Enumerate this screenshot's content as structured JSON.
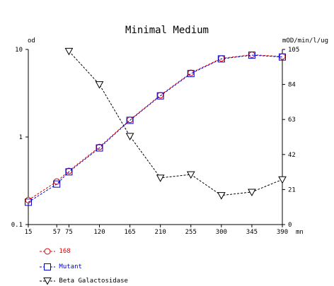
{
  "chart_data": {
    "type": "line",
    "title": "Minimal Medium",
    "x": [
      15,
      57,
      75,
      120,
      165,
      210,
      255,
      300,
      345,
      390
    ],
    "x_tick_labels": [
      "15",
      "57",
      "75",
      "120",
      "165",
      "210",
      "255",
      "300",
      "345",
      "390"
    ],
    "x_unit": "mn",
    "xlim": [
      15,
      390
    ],
    "y_left": {
      "label": "od",
      "scale": "log",
      "lim": [
        0.1,
        10
      ],
      "ticks": [
        0.1,
        1,
        10
      ],
      "tick_labels": [
        "0.1",
        "1",
        "10"
      ]
    },
    "y_right": {
      "label": "mOD/min/l/ug",
      "scale": "linear",
      "lim": [
        0,
        105
      ],
      "ticks": [
        0,
        21,
        42,
        63,
        84,
        105
      ],
      "tick_labels": [
        "0",
        "21",
        "42",
        "63",
        "84",
        "105"
      ]
    },
    "series": [
      {
        "name": "168",
        "axis": "left",
        "color": "#dd0000",
        "marker": "circle",
        "x": [
          15,
          57,
          75,
          120,
          165,
          210,
          255,
          300,
          345,
          390
        ],
        "values": [
          0.19,
          0.31,
          0.41,
          0.77,
          1.57,
          3.0,
          5.4,
          7.9,
          8.7,
          8.3
        ]
      },
      {
        "name": "Mutant",
        "axis": "left",
        "color": "#0000cc",
        "marker": "square",
        "x": [
          15,
          57,
          75,
          120,
          165,
          210,
          255,
          300,
          345,
          390
        ],
        "values": [
          0.18,
          0.29,
          0.4,
          0.75,
          1.55,
          2.95,
          5.3,
          7.8,
          8.6,
          8.2
        ]
      },
      {
        "name": "Beta Galactosidase",
        "axis": "right",
        "color": "#000000",
        "marker": "triangle-down",
        "x": [
          75,
          120,
          165,
          210,
          255,
          300,
          345,
          390
        ],
        "values": [
          104,
          84,
          53,
          28,
          30,
          17.5,
          19.5,
          27
        ]
      }
    ],
    "legend_position": "bottom-left",
    "grid": false
  }
}
